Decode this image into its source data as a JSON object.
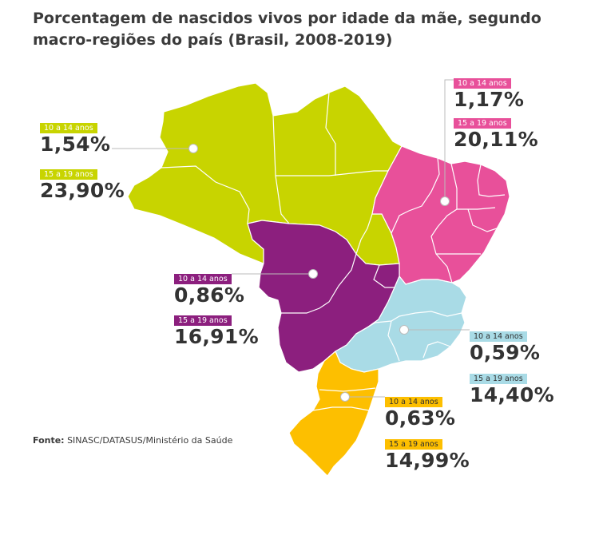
{
  "title": "Porcentagem de nascidos vivos por idade da mãe, segundo macro-regiões do país (Brasil, 2008-2019)",
  "source": {
    "prefix": "Fonte:",
    "text": " SINASC/DATASUS/Ministério da Saúde"
  },
  "regions": {
    "norte": {
      "color": "#c8d400",
      "label_young": "10 a 14 anos",
      "value_young": "1,54%",
      "label_older": "15 a 19 anos",
      "value_older": "23,90%"
    },
    "nordeste": {
      "color": "#e8509a",
      "label_young": "10 a 14 anos",
      "value_young": "1,17%",
      "label_older": "15 a 19 anos",
      "value_older": "20,11%"
    },
    "centro_oeste": {
      "color": "#8c1f7e",
      "label_young": "10 a 14 anos",
      "value_young": "0,86%",
      "label_older": "15 a 19 anos",
      "value_older": "16,91%"
    },
    "sudeste": {
      "color": "#a9dbe6",
      "label_young": "10 a 14 anos",
      "value_young": "0,59%",
      "label_older": "15 a 19 anos",
      "value_older": "14,40%"
    },
    "sul": {
      "color": "#fdbf00",
      "label_young": "10 a 14 anos",
      "value_young": "0,63%",
      "label_older": "15 a 19 anos",
      "value_older": "14,99%"
    }
  }
}
